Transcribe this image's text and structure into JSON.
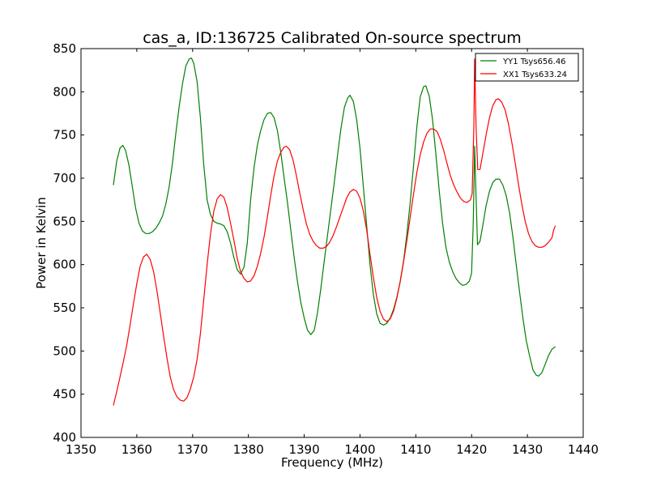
{
  "chart_data": {
    "type": "line",
    "title": "cas_a, ID:136725 Calibrated On-source spectrum",
    "xlabel": "Frequency (MHz)",
    "ylabel": "Power in Kelvin",
    "xlim": [
      1350,
      1440
    ],
    "ylim": [
      400,
      850
    ],
    "xticks": [
      1350,
      1360,
      1370,
      1380,
      1390,
      1400,
      1410,
      1420,
      1430,
      1440
    ],
    "yticks": [
      400,
      450,
      500,
      550,
      600,
      650,
      700,
      750,
      800,
      850
    ],
    "grid": false,
    "legend_position": "top-right",
    "series": [
      {
        "name": "YY1 Tsys656.46",
        "color": "#008000",
        "points": [
          [
            1355.8,
            692
          ],
          [
            1356.4,
            720
          ],
          [
            1357.0,
            735
          ],
          [
            1357.5,
            738
          ],
          [
            1358.0,
            732
          ],
          [
            1358.6,
            715
          ],
          [
            1359.2,
            690
          ],
          [
            1359.8,
            665
          ],
          [
            1360.4,
            648
          ],
          [
            1361.0,
            639
          ],
          [
            1361.6,
            636
          ],
          [
            1362.2,
            636
          ],
          [
            1362.8,
            638
          ],
          [
            1363.4,
            642
          ],
          [
            1364.0,
            648
          ],
          [
            1364.6,
            656
          ],
          [
            1365.2,
            670
          ],
          [
            1365.8,
            690
          ],
          [
            1366.4,
            718
          ],
          [
            1367.0,
            752
          ],
          [
            1367.6,
            783
          ],
          [
            1368.2,
            810
          ],
          [
            1368.8,
            830
          ],
          [
            1369.4,
            838
          ],
          [
            1369.8,
            839
          ],
          [
            1370.2,
            833
          ],
          [
            1370.8,
            812
          ],
          [
            1371.4,
            770
          ],
          [
            1372.0,
            715
          ],
          [
            1372.6,
            675
          ],
          [
            1373.2,
            658
          ],
          [
            1373.8,
            650
          ],
          [
            1374.4,
            648
          ],
          [
            1375.0,
            647
          ],
          [
            1375.6,
            645
          ],
          [
            1376.2,
            638
          ],
          [
            1376.8,
            625
          ],
          [
            1377.4,
            608
          ],
          [
            1378.0,
            594
          ],
          [
            1378.6,
            589
          ],
          [
            1379.2,
            597
          ],
          [
            1379.8,
            625
          ],
          [
            1380.4,
            675
          ],
          [
            1381.0,
            712
          ],
          [
            1381.6,
            738
          ],
          [
            1382.2,
            755
          ],
          [
            1382.8,
            768
          ],
          [
            1383.4,
            775
          ],
          [
            1384.0,
            776
          ],
          [
            1384.6,
            770
          ],
          [
            1385.2,
            755
          ],
          [
            1385.8,
            730
          ],
          [
            1386.4,
            700
          ],
          [
            1387.0,
            672
          ],
          [
            1387.6,
            640
          ],
          [
            1388.2,
            608
          ],
          [
            1388.8,
            580
          ],
          [
            1389.4,
            556
          ],
          [
            1390.0,
            538
          ],
          [
            1390.6,
            524
          ],
          [
            1391.2,
            519
          ],
          [
            1391.8,
            524
          ],
          [
            1392.4,
            545
          ],
          [
            1393.0,
            573
          ],
          [
            1393.6,
            605
          ],
          [
            1394.2,
            635
          ],
          [
            1394.8,
            665
          ],
          [
            1395.4,
            696
          ],
          [
            1396.0,
            728
          ],
          [
            1396.6,
            758
          ],
          [
            1397.2,
            782
          ],
          [
            1397.8,
            793
          ],
          [
            1398.2,
            796
          ],
          [
            1398.8,
            789
          ],
          [
            1399.4,
            768
          ],
          [
            1400.0,
            735
          ],
          [
            1400.6,
            690
          ],
          [
            1401.2,
            645
          ],
          [
            1401.8,
            600
          ],
          [
            1402.4,
            565
          ],
          [
            1403.0,
            543
          ],
          [
            1403.6,
            532
          ],
          [
            1404.2,
            530
          ],
          [
            1404.8,
            532
          ],
          [
            1405.4,
            538
          ],
          [
            1406.0,
            548
          ],
          [
            1406.6,
            562
          ],
          [
            1407.2,
            580
          ],
          [
            1407.8,
            604
          ],
          [
            1408.4,
            635
          ],
          [
            1409.0,
            672
          ],
          [
            1409.6,
            715
          ],
          [
            1410.2,
            760
          ],
          [
            1410.8,
            794
          ],
          [
            1411.4,
            806
          ],
          [
            1411.8,
            807
          ],
          [
            1412.4,
            795
          ],
          [
            1413.0,
            768
          ],
          [
            1413.6,
            728
          ],
          [
            1414.2,
            685
          ],
          [
            1414.8,
            648
          ],
          [
            1415.4,
            620
          ],
          [
            1416.0,
            603
          ],
          [
            1416.6,
            592
          ],
          [
            1417.2,
            584
          ],
          [
            1417.8,
            579
          ],
          [
            1418.4,
            576
          ],
          [
            1419.0,
            577
          ],
          [
            1419.6,
            581
          ],
          [
            1420.0,
            590
          ],
          [
            1420.3,
            650
          ],
          [
            1420.55,
            737
          ],
          [
            1420.8,
            680
          ],
          [
            1421.05,
            623
          ],
          [
            1421.5,
            627
          ],
          [
            1422.0,
            645
          ],
          [
            1422.6,
            668
          ],
          [
            1423.2,
            685
          ],
          [
            1423.8,
            695
          ],
          [
            1424.4,
            699
          ],
          [
            1425.0,
            699
          ],
          [
            1425.6,
            692
          ],
          [
            1426.2,
            680
          ],
          [
            1426.8,
            660
          ],
          [
            1427.4,
            632
          ],
          [
            1428.0,
            600
          ],
          [
            1428.6,
            568
          ],
          [
            1429.2,
            538
          ],
          [
            1429.8,
            512
          ],
          [
            1430.4,
            494
          ],
          [
            1431.0,
            478
          ],
          [
            1431.6,
            472
          ],
          [
            1432.0,
            471
          ],
          [
            1432.6,
            475
          ],
          [
            1433.2,
            485
          ],
          [
            1433.8,
            495
          ],
          [
            1434.4,
            502
          ],
          [
            1435.0,
            505
          ]
        ]
      },
      {
        "name": "XX1 Tsys633.24",
        "color": "#ff0000",
        "points": [
          [
            1355.8,
            437
          ],
          [
            1356.4,
            453
          ],
          [
            1357.0,
            470
          ],
          [
            1357.6,
            488
          ],
          [
            1358.2,
            507
          ],
          [
            1358.8,
            530
          ],
          [
            1359.4,
            555
          ],
          [
            1360.0,
            578
          ],
          [
            1360.6,
            598
          ],
          [
            1361.2,
            609
          ],
          [
            1361.8,
            612
          ],
          [
            1362.4,
            606
          ],
          [
            1363.0,
            592
          ],
          [
            1363.6,
            570
          ],
          [
            1364.2,
            544
          ],
          [
            1364.8,
            517
          ],
          [
            1365.4,
            492
          ],
          [
            1366.0,
            470
          ],
          [
            1366.6,
            455
          ],
          [
            1367.2,
            447
          ],
          [
            1367.8,
            443
          ],
          [
            1368.4,
            442
          ],
          [
            1369.0,
            446
          ],
          [
            1369.6,
            456
          ],
          [
            1370.2,
            470
          ],
          [
            1370.8,
            490
          ],
          [
            1371.4,
            520
          ],
          [
            1372.0,
            560
          ],
          [
            1372.6,
            600
          ],
          [
            1373.2,
            635
          ],
          [
            1373.8,
            662
          ],
          [
            1374.4,
            676
          ],
          [
            1375.0,
            681
          ],
          [
            1375.6,
            678
          ],
          [
            1376.2,
            666
          ],
          [
            1376.8,
            648
          ],
          [
            1377.4,
            628
          ],
          [
            1378.0,
            607
          ],
          [
            1378.6,
            592
          ],
          [
            1379.2,
            584
          ],
          [
            1379.8,
            580
          ],
          [
            1380.4,
            581
          ],
          [
            1381.0,
            587
          ],
          [
            1381.6,
            598
          ],
          [
            1382.2,
            613
          ],
          [
            1382.8,
            632
          ],
          [
            1383.4,
            655
          ],
          [
            1384.0,
            680
          ],
          [
            1384.6,
            703
          ],
          [
            1385.2,
            720
          ],
          [
            1385.8,
            730
          ],
          [
            1386.4,
            736
          ],
          [
            1386.8,
            737
          ],
          [
            1387.4,
            733
          ],
          [
            1388.0,
            721
          ],
          [
            1388.6,
            703
          ],
          [
            1389.2,
            683
          ],
          [
            1389.8,
            664
          ],
          [
            1390.4,
            647
          ],
          [
            1391.0,
            635
          ],
          [
            1391.6,
            627
          ],
          [
            1392.2,
            622
          ],
          [
            1392.8,
            619
          ],
          [
            1393.4,
            619
          ],
          [
            1394.0,
            621
          ],
          [
            1394.6,
            626
          ],
          [
            1395.2,
            634
          ],
          [
            1395.8,
            644
          ],
          [
            1396.4,
            655
          ],
          [
            1397.0,
            666
          ],
          [
            1397.6,
            677
          ],
          [
            1398.2,
            684
          ],
          [
            1398.8,
            687
          ],
          [
            1399.4,
            685
          ],
          [
            1400.0,
            677
          ],
          [
            1400.6,
            662
          ],
          [
            1401.2,
            640
          ],
          [
            1401.8,
            612
          ],
          [
            1402.4,
            585
          ],
          [
            1403.0,
            562
          ],
          [
            1403.6,
            546
          ],
          [
            1404.2,
            537
          ],
          [
            1404.8,
            534
          ],
          [
            1405.4,
            537
          ],
          [
            1406.0,
            546
          ],
          [
            1406.6,
            561
          ],
          [
            1407.2,
            580
          ],
          [
            1407.8,
            603
          ],
          [
            1408.4,
            628
          ],
          [
            1409.0,
            655
          ],
          [
            1409.6,
            682
          ],
          [
            1410.2,
            707
          ],
          [
            1410.8,
            727
          ],
          [
            1411.4,
            742
          ],
          [
            1412.0,
            752
          ],
          [
            1412.6,
            757
          ],
          [
            1413.2,
            757
          ],
          [
            1413.8,
            754
          ],
          [
            1414.4,
            745
          ],
          [
            1415.0,
            732
          ],
          [
            1415.6,
            717
          ],
          [
            1416.2,
            703
          ],
          [
            1416.8,
            692
          ],
          [
            1417.4,
            684
          ],
          [
            1418.0,
            677
          ],
          [
            1418.6,
            673
          ],
          [
            1419.2,
            672
          ],
          [
            1419.8,
            675
          ],
          [
            1420.1,
            682
          ],
          [
            1420.4,
            760
          ],
          [
            1420.55,
            838
          ],
          [
            1420.8,
            760
          ],
          [
            1421.1,
            710
          ],
          [
            1421.5,
            710
          ],
          [
            1422.0,
            728
          ],
          [
            1422.6,
            750
          ],
          [
            1423.2,
            770
          ],
          [
            1423.8,
            784
          ],
          [
            1424.4,
            791
          ],
          [
            1424.8,
            792
          ],
          [
            1425.4,
            788
          ],
          [
            1426.0,
            779
          ],
          [
            1426.6,
            763
          ],
          [
            1427.2,
            742
          ],
          [
            1427.8,
            718
          ],
          [
            1428.4,
            693
          ],
          [
            1429.0,
            670
          ],
          [
            1429.6,
            650
          ],
          [
            1430.2,
            636
          ],
          [
            1430.8,
            627
          ],
          [
            1431.4,
            622
          ],
          [
            1432.0,
            620
          ],
          [
            1432.6,
            620
          ],
          [
            1433.2,
            622
          ],
          [
            1433.8,
            626
          ],
          [
            1434.4,
            631
          ],
          [
            1434.7,
            640
          ],
          [
            1435.0,
            645
          ]
        ]
      }
    ]
  }
}
